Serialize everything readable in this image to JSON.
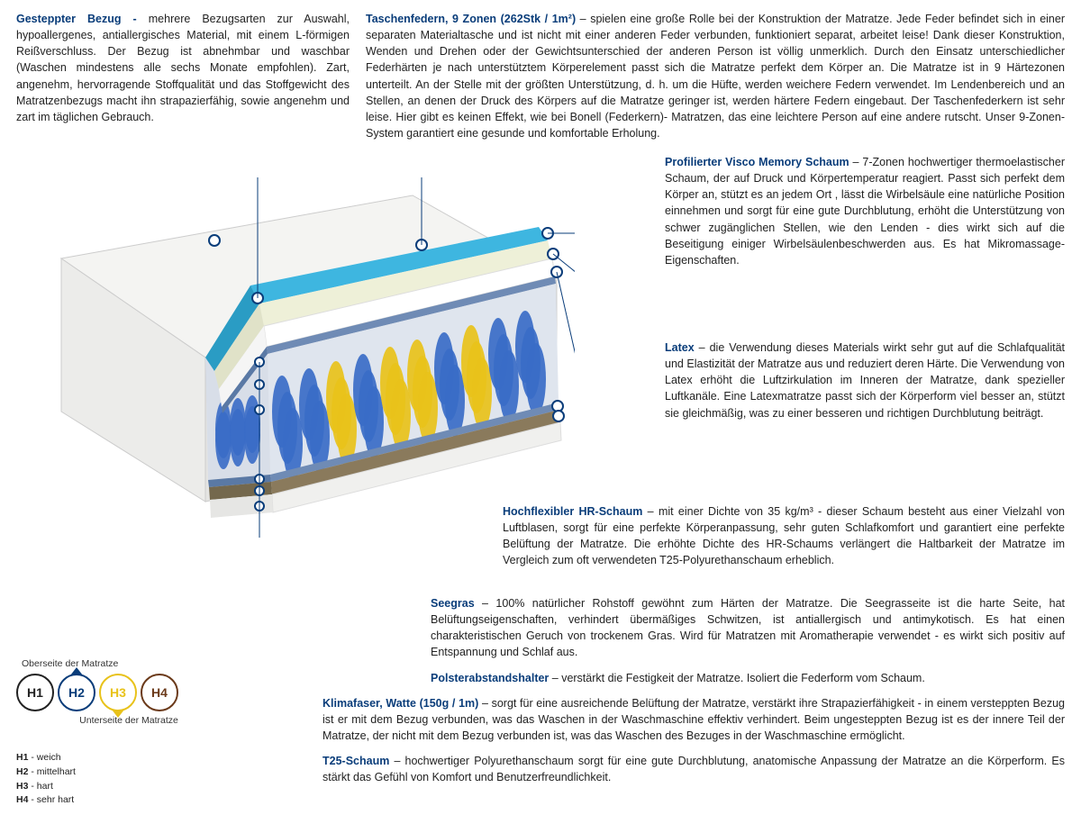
{
  "top_left": {
    "heading": "Gesteppter Bezug -",
    "body": " mehrere Bezugsarten zur Auswahl, hypoallergenes, antiallergisches Material, mit einem L-förmigen Reißverschluss. Der Bezug ist abnehmbar und waschbar (Waschen mindestens alle sechs Monate empfohlen). Zart, angenehm, hervorragende Stoffqualität und das Stoffgewicht des Matratzenbezugs macht ihn strapazierfähig, sowie angenehm und zart im täglichen Gebrauch."
  },
  "top_right": {
    "heading": "Taschenfedern, 9 Zonen (262Stk / 1m²)",
    "body": " – spielen eine große Rolle bei der Konstruktion der Matratze. Jede Feder befindet sich in einer separaten Materialtasche und ist nicht mit einer anderen Feder verbunden, funktioniert separat, arbeitet leise! Dank dieser Konstruktion, Wenden und Drehen oder der Gewichtsunterschied der anderen Person ist völlig unmerklich. Durch den Einsatz unterschiedlicher Federhärten je nach unterstütztem Körperelement passt sich die Matratze perfekt dem Körper an. Die Matratze ist in 9 Härtezonen unterteilt. An der Stelle mit der größten Unterstützung, d. h. um die Hüfte, werden weichere Federn verwendet. Im Lendenbereich und an Stellen, an denen der Druck des Körpers auf die Matratze geringer ist, werden härtere Federn eingebaut. Der Taschenfederkern ist sehr leise. Hier gibt es keinen Effekt, wie bei Bonell (Federkern)- Matratzen, das eine leichtere Person auf eine andere rutscht. Unser 9-Zonen-System garantiert eine gesunde und komfortable Erholung."
  },
  "visco": {
    "heading": "Profilierter Visco Memory Schaum",
    "body": " – 7-Zonen hochwertiger thermoelastischer Schaum, der auf Druck und Körpertemperatur reagiert. Passt sich perfekt dem Körper an, stützt es an jedem Ort , lässt die Wirbelsäule eine natürliche Position einnehmen und sorgt für eine gute Durchblutung, erhöht die Unterstützung von schwer zugänglichen Stellen, wie den Lenden - dies wirkt sich auf die Beseitigung einiger Wirbelsäulenbeschwerden aus. Es hat Mikromassage-Eigenschaften."
  },
  "latex": {
    "heading": "Latex",
    "body": " – die Verwendung dieses Materials wirkt sehr gut auf die Schlafqualität und Elastizität der Matratze aus und reduziert deren Härte. Die Verwendung von Latex erhöht die Luftzirkulation im Inneren der Matratze, dank spezieller Luftkanäle. Eine Latexmatratze passt sich der Körperform viel besser an, stützt sie gleichmäßig, was zu einer besseren und richtigen Durchblutung beiträgt."
  },
  "hr": {
    "heading": "Hochflexibler HR-Schaum",
    "body": " – mit einer Dichte von 35 kg/m³ - dieser Schaum besteht aus einer Vielzahl von Luftblasen, sorgt für eine perfekte Körperanpassung, sehr guten Schlafkomfort und garantiert eine perfekte Belüftung der Matratze. Die erhöhte Dichte des HR-Schaums verlängert die Haltbarkeit der Matratze im Vergleich zum oft verwendeten T25-Polyurethanschaum erheblich."
  },
  "seegras": {
    "heading": "Seegras",
    "body": " – 100% natürlicher Rohstoff gewöhnt zum Härten der Matratze. Die Seegrasseite ist die harte Seite, hat Belüftungseigenschaften, verhindert übermäßiges Schwitzen, ist antiallergisch und antimykotisch. Es hat einen charakteristischen Geruch von trockenem Gras. Wird für Matratzen mit Aromatherapie verwendet - es wirkt sich positiv auf Entspannung und Schlaf aus."
  },
  "polster": {
    "heading": "Polsterabstandshalter",
    "body": " – verstärkt die Festigkeit der Matratze. Isoliert die Federform vom Schaum."
  },
  "klima": {
    "heading": "Klimafaser, Watte (150g / 1m)",
    "body": " – sorgt für eine ausreichende Belüftung der Matratze, verstärkt ihre Strapazierfähigkeit - in einem versteppten Bezug ist er mit dem Bezug verbunden, was das Waschen in der Waschmaschine effektiv verhindert. Beim ungesteppten Bezug ist es der innere Teil der Matratze, der nicht mit dem Bezug verbunden ist, was das Waschen des Bezuges in der Waschmaschine ermöglicht."
  },
  "t25": {
    "heading": "T25-Schaum",
    "body": " – hochwertiger Polyurethanschaum sorgt für eine gute Durchblutung, anatomische Anpassung der Matratze an die Körperform. Es stärkt das Gefühl von Komfort und Benutzerfreundlichkeit."
  },
  "hardness": {
    "top_label": "Oberseite der Matratze",
    "bottom_label": "Unterseite der Matratze",
    "circles": [
      {
        "label": "H1",
        "color": "#222222"
      },
      {
        "label": "H2",
        "color": "#0a3d7a"
      },
      {
        "label": "H3",
        "color": "#e8c21a"
      },
      {
        "label": "H4",
        "color": "#6b3a1a"
      }
    ],
    "legend": [
      {
        "k": "H1",
        "v": " - weich"
      },
      {
        "k": "H2",
        "v": " - mittelhart"
      },
      {
        "k": "H3",
        "v": " - hart"
      },
      {
        "k": "H4",
        "v": " - sehr hart"
      }
    ]
  },
  "diagram": {
    "cover_color": "#f2f2f0",
    "visco_color": "#3eb6e0",
    "latex_color": "#eef0d8",
    "hr_color": "#ffffff",
    "spring_blue": "#3a6cc7",
    "spring_yellow": "#e8c21a",
    "pad_color": "#6f8bb5",
    "seagrass_color": "#8a7a5c",
    "t25_color": "#f0f0ee",
    "line_color": "#0a3d7a"
  }
}
